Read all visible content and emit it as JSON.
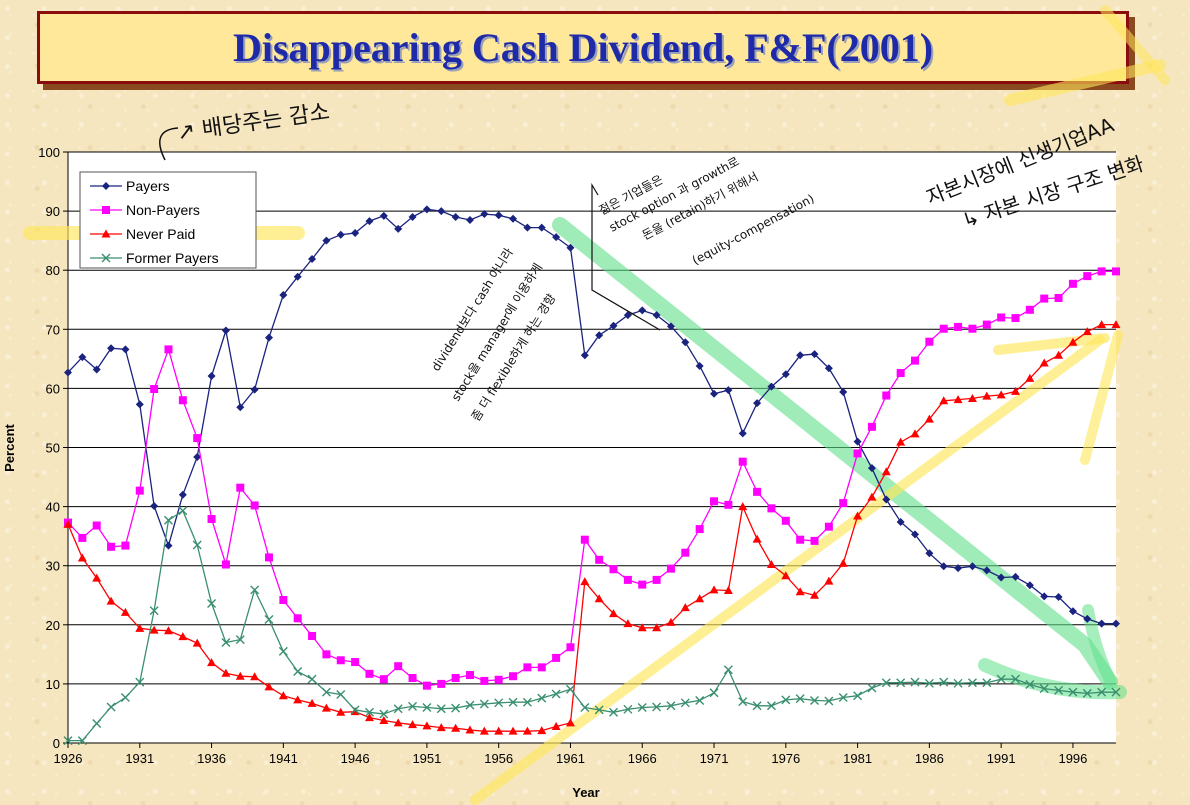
{
  "title": "Disappearing Cash Dividend, F&F(2001)",
  "chart_data": {
    "type": "line",
    "xlabel": "Year",
    "ylabel": "Percent",
    "xlim": [
      1926,
      1999
    ],
    "ylim": [
      0,
      100
    ],
    "y_ticks": [
      0,
      10,
      20,
      30,
      40,
      50,
      60,
      70,
      80,
      90,
      100
    ],
    "x_ticks": [
      1926,
      1931,
      1936,
      1941,
      1946,
      1951,
      1956,
      1961,
      1966,
      1971,
      1976,
      1981,
      1986,
      1991,
      1996
    ],
    "grid": "horizontal",
    "legend_position": "top-left",
    "x": [
      1926,
      1927,
      1928,
      1929,
      1930,
      1931,
      1932,
      1933,
      1934,
      1935,
      1936,
      1937,
      1938,
      1939,
      1940,
      1941,
      1942,
      1943,
      1944,
      1945,
      1946,
      1947,
      1948,
      1949,
      1950,
      1951,
      1952,
      1953,
      1954,
      1955,
      1956,
      1957,
      1958,
      1959,
      1960,
      1961,
      1962,
      1963,
      1964,
      1965,
      1966,
      1967,
      1968,
      1969,
      1970,
      1971,
      1972,
      1973,
      1974,
      1975,
      1976,
      1977,
      1978,
      1979,
      1980,
      1981,
      1982,
      1983,
      1984,
      1985,
      1986,
      1987,
      1988,
      1989,
      1990,
      1991,
      1992,
      1993,
      1994,
      1995,
      1996,
      1997,
      1998,
      1999
    ],
    "series": [
      {
        "name": "Payers",
        "color": "#1a237e",
        "marker": "diamond",
        "values": [
          62.7,
          65.3,
          63.2,
          66.8,
          66.6,
          57.3,
          40.1,
          33.4,
          42.0,
          48.4,
          62.1,
          69.8,
          56.8,
          59.8,
          68.6,
          75.8,
          78.9,
          81.9,
          85.0,
          86.0,
          86.3,
          88.3,
          89.2,
          87.0,
          89.0,
          90.3,
          90.0,
          89.0,
          88.5,
          89.5,
          89.3,
          88.7,
          87.2,
          87.2,
          85.6,
          83.8,
          65.6,
          69.0,
          70.6,
          72.4,
          73.2,
          72.4,
          70.5,
          67.8,
          63.8,
          59.1,
          59.7,
          52.4,
          57.5,
          60.3,
          62.4,
          65.6,
          65.8,
          63.4,
          59.4,
          51.0,
          46.5,
          41.2,
          37.4,
          35.3,
          32.1,
          29.9,
          29.6,
          29.9,
          29.2,
          28.0,
          28.1,
          26.7,
          24.8,
          24.7,
          22.3,
          21.0,
          20.2,
          20.2
        ]
      },
      {
        "name": "Non-Payers",
        "color": "#ff00ff",
        "marker": "square",
        "values": [
          37.3,
          34.7,
          36.8,
          33.2,
          33.4,
          42.7,
          59.9,
          66.6,
          58.0,
          51.6,
          37.9,
          30.2,
          43.2,
          40.2,
          31.4,
          24.2,
          21.1,
          18.1,
          15.0,
          14.0,
          13.7,
          11.7,
          10.8,
          13.0,
          11.0,
          9.7,
          10.0,
          11.0,
          11.5,
          10.5,
          10.7,
          11.3,
          12.8,
          12.8,
          14.4,
          16.2,
          34.4,
          31.0,
          29.4,
          27.6,
          26.8,
          27.6,
          29.5,
          32.2,
          36.2,
          40.9,
          40.3,
          47.6,
          42.5,
          39.7,
          37.6,
          34.4,
          34.2,
          36.6,
          40.6,
          49.0,
          53.5,
          58.8,
          62.6,
          64.7,
          67.9,
          70.1,
          70.4,
          70.1,
          70.8,
          72.0,
          71.9,
          73.3,
          75.2,
          75.3,
          77.7,
          79.0,
          79.8,
          79.8
        ]
      },
      {
        "name": "Never Paid",
        "color": "#ff0000",
        "marker": "triangle",
        "values": [
          37.0,
          31.3,
          27.9,
          24.0,
          22.1,
          19.4,
          19.1,
          19.0,
          18.0,
          16.9,
          13.6,
          11.8,
          11.3,
          11.2,
          9.5,
          8.0,
          7.3,
          6.7,
          5.9,
          5.2,
          5.3,
          4.3,
          3.8,
          3.4,
          3.1,
          2.9,
          2.6,
          2.5,
          2.2,
          2.0,
          2.0,
          2.0,
          2.0,
          2.1,
          2.8,
          3.4,
          27.3,
          24.4,
          21.9,
          20.2,
          19.5,
          19.5,
          20.4,
          22.9,
          24.4,
          25.9,
          25.8,
          40.0,
          34.5,
          30.2,
          28.3,
          25.6,
          25.0,
          27.4,
          30.4,
          38.4,
          41.6,
          45.9,
          50.9,
          52.3,
          54.8,
          57.9,
          58.1,
          58.3,
          58.7,
          58.9,
          59.5,
          61.7,
          64.3,
          65.6,
          67.8,
          69.6,
          70.8,
          70.8
        ]
      },
      {
        "name": "Former Payers",
        "color": "#3a8f6f",
        "marker": "x",
        "values": [
          0.4,
          0.4,
          3.3,
          6.1,
          7.7,
          10.3,
          22.4,
          37.7,
          39.3,
          33.5,
          23.6,
          17.0,
          17.5,
          25.9,
          20.9,
          15.5,
          12.1,
          10.8,
          8.6,
          8.2,
          5.6,
          5.2,
          4.9,
          5.8,
          6.2,
          6.0,
          5.8,
          5.9,
          6.4,
          6.6,
          6.8,
          6.9,
          6.9,
          7.6,
          8.3,
          9.1,
          6.0,
          5.6,
          5.2,
          5.7,
          6.0,
          6.1,
          6.3,
          6.8,
          7.2,
          8.5,
          12.4,
          7.0,
          6.3,
          6.3,
          7.3,
          7.5,
          7.2,
          7.1,
          7.7,
          8.0,
          9.3,
          10.2,
          10.2,
          10.3,
          10.1,
          10.3,
          10.1,
          10.2,
          10.2,
          10.8,
          10.8,
          9.9,
          9.2,
          8.9,
          8.6,
          8.4,
          8.6,
          8.6
        ]
      }
    ]
  },
  "annotations": {
    "a1": "↗ 배당주는 감소",
    "a2": "자본시장에 신생기업AA",
    "a3": "↳ 자본 시장 구조 변화",
    "a4": "젊은 기업들은",
    "a5": "stock option 과 growth로",
    "a6": "돈을 (retain)하기 위해서",
    "a7": "(equity-compensation)",
    "a8": "dividend보다 cash 아니라",
    "a9": "stock을 manager에 이용하게",
    "a10": "좀 더 flexible하게 하는 경향"
  }
}
